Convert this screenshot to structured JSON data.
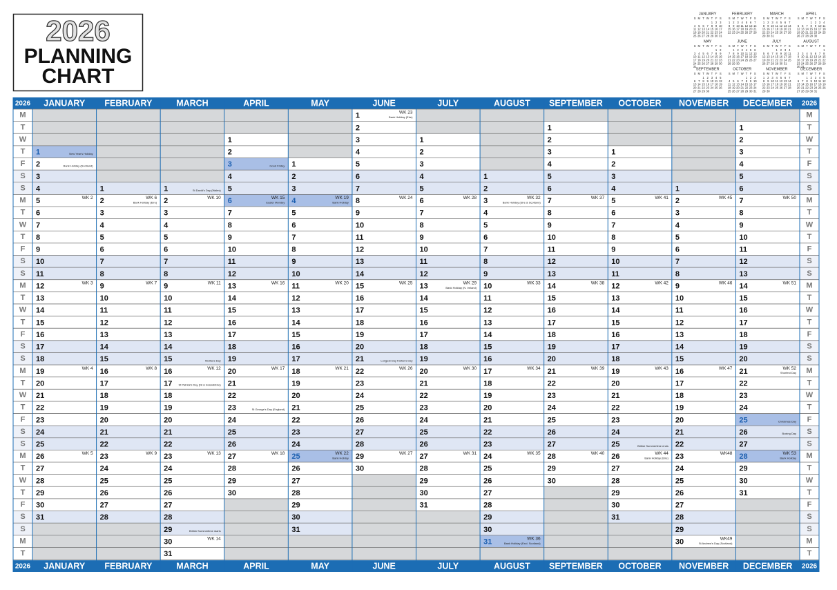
{
  "title": {
    "year": "2026",
    "line1": "PLANNING",
    "line2": "CHART"
  },
  "year_label": "2026",
  "weekdays": [
    "M",
    "T",
    "W",
    "T",
    "F",
    "S",
    "S",
    "M",
    "T",
    "W",
    "T",
    "F",
    "S",
    "S",
    "M",
    "T",
    "W",
    "T",
    "F",
    "S",
    "S",
    "M",
    "T",
    "W",
    "T",
    "F",
    "S",
    "S",
    "M",
    "T",
    "W",
    "T",
    "F",
    "S",
    "S",
    "M",
    "T"
  ],
  "mini_weekdays": [
    "S",
    "M",
    "T",
    "W",
    "T",
    "F",
    "S"
  ],
  "months": [
    {
      "name": "JANUARY",
      "days": [
        null,
        null,
        null,
        1,
        2,
        3,
        4,
        5,
        6,
        7,
        8,
        9,
        10,
        11,
        12,
        13,
        14,
        15,
        16,
        17,
        18,
        19,
        20,
        21,
        22,
        23,
        24,
        25,
        26,
        27,
        28,
        29,
        30,
        31
      ],
      "weeks": [
        {
          "date": 5,
          "label": "WK 2"
        },
        {
          "date": 12,
          "label": "WK 3"
        },
        {
          "date": 19,
          "label": "WK 4"
        },
        {
          "date": 26,
          "label": "WK 5"
        }
      ],
      "notes": [
        {
          "date": 1,
          "text": "New Year's Holiday"
        },
        {
          "date": 2,
          "text": "Bank Holiday (Scotland)"
        }
      ],
      "holidays": [
        1
      ]
    },
    {
      "name": "FEBRUARY",
      "days": [
        null,
        null,
        null,
        null,
        null,
        null,
        1,
        2,
        3,
        4,
        5,
        6,
        7,
        8,
        9,
        10,
        11,
        12,
        13,
        14,
        15,
        16,
        17,
        18,
        19,
        20,
        21,
        22,
        23,
        24,
        25,
        26,
        27,
        28
      ],
      "weeks": [
        {
          "date": 2,
          "label": "WK 6"
        },
        {
          "date": 9,
          "label": "WK 7"
        },
        {
          "date": 16,
          "label": "WK 8"
        },
        {
          "date": 23,
          "label": "WK 9"
        }
      ],
      "notes": [
        {
          "date": 2,
          "text": "Bank Holiday (Eire)"
        }
      ],
      "holidays": []
    },
    {
      "name": "MARCH",
      "days": [
        null,
        null,
        null,
        null,
        null,
        null,
        1,
        2,
        3,
        4,
        5,
        6,
        7,
        8,
        9,
        10,
        11,
        12,
        13,
        14,
        15,
        16,
        17,
        18,
        19,
        20,
        21,
        22,
        23,
        24,
        25,
        26,
        27,
        28,
        29,
        30,
        31
      ],
      "weeks": [
        {
          "date": 2,
          "label": "WK 10"
        },
        {
          "date": 9,
          "label": "WK 11"
        },
        {
          "date": 16,
          "label": "WK 12"
        },
        {
          "date": 23,
          "label": "WK 13"
        },
        {
          "date": 30,
          "label": "WK 14"
        }
      ],
      "notes": [
        {
          "date": 1,
          "text": "St David's Day (Wales)"
        },
        {
          "date": 15,
          "text": "Mothers Day"
        },
        {
          "date": 17,
          "text": "St Patrick's Day (NI & Ireland/Eire)"
        },
        {
          "date": 29,
          "text": "British Summertime starts"
        }
      ],
      "holidays": []
    },
    {
      "name": "APRIL",
      "days": [
        null,
        null,
        1,
        2,
        3,
        4,
        5,
        6,
        7,
        8,
        9,
        10,
        11,
        12,
        13,
        14,
        15,
        16,
        17,
        18,
        19,
        20,
        21,
        22,
        23,
        24,
        25,
        26,
        27,
        28,
        29,
        30
      ],
      "weeks": [
        {
          "date": 6,
          "label": "WK 15"
        },
        {
          "date": 13,
          "label": "WK 16"
        },
        {
          "date": 20,
          "label": "WK 17"
        },
        {
          "date": 27,
          "label": "WK 18"
        }
      ],
      "notes": [
        {
          "date": 3,
          "text": "Good Friday"
        },
        {
          "date": 6,
          "text": "Easter Monday"
        },
        {
          "date": 23,
          "text": "St George's Day (England)"
        }
      ],
      "holidays": [
        3,
        6
      ]
    },
    {
      "name": "MAY",
      "days": [
        null,
        null,
        null,
        null,
        1,
        2,
        3,
        4,
        5,
        6,
        7,
        8,
        9,
        10,
        11,
        12,
        13,
        14,
        15,
        16,
        17,
        18,
        19,
        20,
        21,
        22,
        23,
        24,
        25,
        26,
        27,
        28,
        29,
        30,
        31
      ],
      "weeks": [
        {
          "date": 4,
          "label": "WK 19"
        },
        {
          "date": 11,
          "label": "WK 20"
        },
        {
          "date": 18,
          "label": "WK 21"
        },
        {
          "date": 25,
          "label": "WK 22"
        }
      ],
      "notes": [
        {
          "date": 4,
          "text": "Bank Holiday"
        },
        {
          "date": 25,
          "text": "Bank Holiday"
        }
      ],
      "holidays": [
        4,
        25
      ]
    },
    {
      "name": "JUNE",
      "days": [
        1,
        2,
        3,
        4,
        5,
        6,
        7,
        8,
        9,
        10,
        11,
        12,
        13,
        14,
        15,
        16,
        17,
        18,
        19,
        20,
        21,
        22,
        23,
        24,
        25,
        26,
        27,
        28,
        29,
        30
      ],
      "weeks": [
        {
          "date": 1,
          "label": "WK 23"
        },
        {
          "date": 8,
          "label": "WK 24"
        },
        {
          "date": 15,
          "label": "WK 25"
        },
        {
          "date": 22,
          "label": "WK 26"
        },
        {
          "date": 29,
          "label": "WK 27"
        }
      ],
      "notes": [
        {
          "date": 1,
          "text": "Bank Holiday (Eire)"
        },
        {
          "date": 21,
          "text": "Longest Day Father's Day"
        }
      ],
      "holidays": []
    },
    {
      "name": "JULY",
      "days": [
        null,
        null,
        1,
        2,
        3,
        4,
        5,
        6,
        7,
        8,
        9,
        10,
        11,
        12,
        13,
        14,
        15,
        16,
        17,
        18,
        19,
        20,
        21,
        22,
        23,
        24,
        25,
        26,
        27,
        28,
        29,
        30,
        31
      ],
      "weeks": [
        {
          "date": 6,
          "label": "WK 28"
        },
        {
          "date": 13,
          "label": "WK 29"
        },
        {
          "date": 20,
          "label": "WK 30"
        },
        {
          "date": 27,
          "label": "WK 31"
        }
      ],
      "notes": [
        {
          "date": 13,
          "text": "Bank Holiday (N. Ireland)"
        }
      ],
      "holidays": []
    },
    {
      "name": "AUGUST",
      "days": [
        null,
        null,
        null,
        null,
        null,
        1,
        2,
        3,
        4,
        5,
        6,
        7,
        8,
        9,
        10,
        11,
        12,
        13,
        14,
        15,
        16,
        17,
        18,
        19,
        20,
        21,
        22,
        23,
        24,
        25,
        26,
        27,
        28,
        29,
        30,
        31
      ],
      "weeks": [
        {
          "date": 3,
          "label": "WK 32"
        },
        {
          "date": 10,
          "label": "WK 33"
        },
        {
          "date": 17,
          "label": "WK 34"
        },
        {
          "date": 24,
          "label": "WK 35"
        },
        {
          "date": 31,
          "label": "WK 36"
        }
      ],
      "notes": [
        {
          "date": 3,
          "text": "Bank Holiday (Eire & Scotland)"
        },
        {
          "date": 31,
          "text": "Bank Holiday (Excl. Scotland)"
        }
      ],
      "holidays": [
        31
      ]
    },
    {
      "name": "SEPTEMBER",
      "days": [
        null,
        1,
        2,
        3,
        4,
        5,
        6,
        7,
        8,
        9,
        10,
        11,
        12,
        13,
        14,
        15,
        16,
        17,
        18,
        19,
        20,
        21,
        22,
        23,
        24,
        25,
        26,
        27,
        28,
        29,
        30
      ],
      "weeks": [
        {
          "date": 7,
          "label": "WK 37"
        },
        {
          "date": 14,
          "label": "WK 38"
        },
        {
          "date": 21,
          "label": "WK 39"
        },
        {
          "date": 28,
          "label": "WK 40"
        }
      ],
      "notes": [],
      "holidays": []
    },
    {
      "name": "OCTOBER",
      "days": [
        null,
        null,
        null,
        1,
        2,
        3,
        4,
        5,
        6,
        7,
        8,
        9,
        10,
        11,
        12,
        13,
        14,
        15,
        16,
        17,
        18,
        19,
        20,
        21,
        22,
        23,
        24,
        25,
        26,
        27,
        28,
        29,
        30,
        31
      ],
      "weeks": [
        {
          "date": 5,
          "label": "WK 41"
        },
        {
          "date": 12,
          "label": "WK 42"
        },
        {
          "date": 19,
          "label": "WK 43"
        },
        {
          "date": 26,
          "label": "WK 44"
        }
      ],
      "notes": [
        {
          "date": 25,
          "text": "British Summertime ends"
        },
        {
          "date": 26,
          "text": "Bank Holiday (Eire)"
        }
      ],
      "holidays": []
    },
    {
      "name": "NOVEMBER",
      "days": [
        null,
        null,
        null,
        null,
        null,
        null,
        1,
        2,
        3,
        4,
        5,
        6,
        7,
        8,
        9,
        10,
        11,
        12,
        13,
        14,
        15,
        16,
        17,
        18,
        19,
        20,
        21,
        22,
        23,
        24,
        25,
        26,
        27,
        28,
        29,
        30
      ],
      "weeks": [
        {
          "date": 2,
          "label": "WK 45"
        },
        {
          "date": 9,
          "label": "WK 46"
        },
        {
          "date": 16,
          "label": "WK 47"
        },
        {
          "date": 23,
          "label": "WK48"
        },
        {
          "date": 30,
          "label": "WK49"
        }
      ],
      "notes": [
        {
          "date": 30,
          "text": "St Andrew's Day (Scotland)"
        }
      ],
      "holidays": []
    },
    {
      "name": "DECEMBER",
      "days": [
        null,
        1,
        2,
        3,
        4,
        5,
        6,
        7,
        8,
        9,
        10,
        11,
        12,
        13,
        14,
        15,
        16,
        17,
        18,
        19,
        20,
        21,
        22,
        23,
        24,
        25,
        26,
        27,
        28,
        29,
        30,
        31
      ],
      "weeks": [
        {
          "date": 7,
          "label": "WK 50"
        },
        {
          "date": 14,
          "label": "WK 51"
        },
        {
          "date": 21,
          "label": "WK 52"
        },
        {
          "date": 28,
          "label": "WK 53"
        }
      ],
      "notes": [
        {
          "date": 21,
          "text": "Shortest Day"
        },
        {
          "date": 25,
          "text": "Christmas Day"
        },
        {
          "date": 26,
          "text": "Boxing Day"
        },
        {
          "date": 28,
          "text": "Bank Holiday"
        }
      ],
      "holidays": [
        25,
        28
      ]
    }
  ]
}
